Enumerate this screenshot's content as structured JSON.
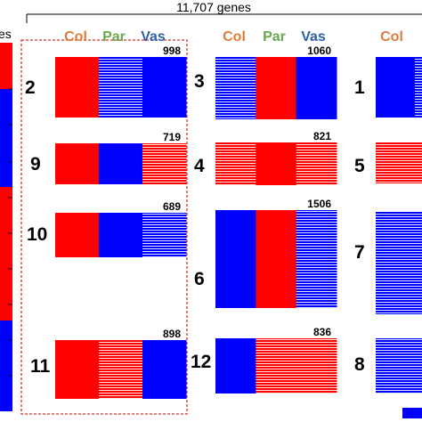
{
  "title": "11,707 genes",
  "left_fragment": "es",
  "headers": {
    "col": "Col",
    "par": "Par",
    "vas": "Vas",
    "colors": {
      "col": "#e07b39",
      "par": "#6aa84f",
      "vas": "#2e5fa8"
    }
  },
  "colors": {
    "red": "#ff0000",
    "blue": "#0000ff",
    "pale": "#f4f4f4",
    "highlight_box": "#d9302c"
  },
  "chart_data": {
    "type": "heatmap",
    "title": "11,707 genes",
    "tissues": [
      "Col",
      "Par",
      "Vas"
    ],
    "clusters": [
      {
        "id": "2",
        "genes": 998,
        "pattern": [
          "high",
          "low-mixed",
          "low"
        ]
      },
      {
        "id": "9",
        "genes": 719,
        "pattern": [
          "high",
          "low",
          "high-mixed"
        ]
      },
      {
        "id": "10",
        "genes": 689,
        "pattern": [
          "high",
          "low",
          "low-mixed"
        ]
      },
      {
        "id": "11",
        "genes": 898,
        "pattern": [
          "high",
          "high-mixed",
          "low"
        ]
      },
      {
        "id": "3",
        "genes": 1060,
        "pattern": [
          "low-mixed",
          "high",
          "low"
        ]
      },
      {
        "id": "4",
        "genes": 821,
        "pattern": [
          "high-mixed",
          "high",
          "high-mixed"
        ]
      },
      {
        "id": "6",
        "genes": 1506,
        "pattern": [
          "low",
          "high",
          "low-mixed"
        ]
      },
      {
        "id": "12",
        "genes": 836,
        "pattern": [
          "low",
          "high-mixed",
          "high-mixed"
        ]
      },
      {
        "id": "1",
        "pattern": [
          "low"
        ]
      },
      {
        "id": "5",
        "pattern": [
          "high-mixed"
        ]
      },
      {
        "id": "7",
        "pattern": [
          "low-mixed"
        ]
      },
      {
        "id": "8",
        "pattern": [
          "low-mixed"
        ]
      }
    ],
    "highlighted_clusters": [
      "2",
      "9",
      "10",
      "11"
    ]
  }
}
